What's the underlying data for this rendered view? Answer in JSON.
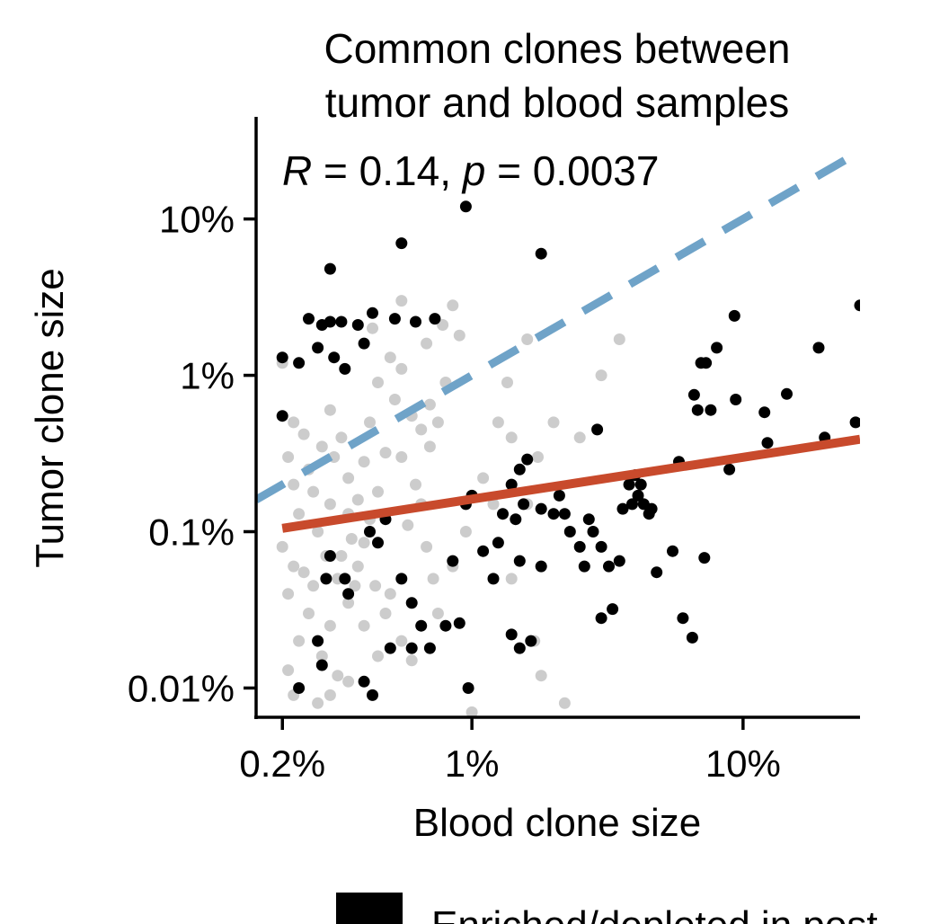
{
  "chart_data": {
    "type": "scatter",
    "title_lines": [
      "Common clones between",
      "tumor and blood samples"
    ],
    "xlabel": "Blood clone size",
    "ylabel": "Tumor clone size",
    "x_scale": "log10",
    "y_scale": "log10",
    "xlim": [
      0.16,
      27
    ],
    "ylim": [
      0.0065,
      45
    ],
    "x_ticks": [
      0.2,
      1,
      10
    ],
    "x_tick_labels": [
      "0.2%",
      "1%",
      "10%"
    ],
    "y_ticks": [
      0.01,
      0.1,
      1,
      10
    ],
    "y_tick_labels": [
      "0.01%",
      "0.1%",
      "1%",
      "10%"
    ],
    "annotation": {
      "r_symbol": "R",
      "r_text": " = 0.14, ",
      "p_symbol": "p",
      "p_text": " = 0.0037"
    },
    "colors": {
      "enriched": "#000000",
      "other": "#cccccc",
      "fit": "#c84a2c",
      "identity": "#6fa3c8",
      "axis": "#000000"
    },
    "lines": [
      {
        "name": "identity",
        "style": "dashed",
        "x": [
          0.16,
          25
        ],
        "y": [
          0.16,
          25
        ]
      },
      {
        "name": "fit",
        "style": "solid",
        "x": [
          0.2,
          27
        ],
        "y": [
          0.105,
          0.39
        ]
      }
    ],
    "legend": {
      "label": "Enriched/depleted in post"
    },
    "series": [
      {
        "name": "other",
        "points": [
          [
            0.2,
            1.2
          ],
          [
            0.22,
            0.5
          ],
          [
            0.21,
            0.3
          ],
          [
            0.24,
            0.42
          ],
          [
            0.26,
            0.18
          ],
          [
            0.23,
            0.13
          ],
          [
            0.2,
            0.08
          ],
          [
            0.22,
            0.06
          ],
          [
            0.21,
            0.04
          ],
          [
            0.25,
            0.03
          ],
          [
            0.23,
            0.02
          ],
          [
            0.21,
            0.013
          ],
          [
            0.22,
            0.009
          ],
          [
            0.27,
            0.008
          ],
          [
            0.25,
            0.25
          ],
          [
            0.28,
            0.35
          ],
          [
            0.3,
            0.6
          ],
          [
            0.33,
            0.4
          ],
          [
            0.35,
            0.22
          ],
          [
            0.3,
            0.15
          ],
          [
            0.27,
            0.1
          ],
          [
            0.29,
            0.07
          ],
          [
            0.32,
            0.05
          ],
          [
            0.35,
            0.035
          ],
          [
            0.3,
            0.025
          ],
          [
            0.28,
            0.016
          ],
          [
            0.32,
            0.012
          ],
          [
            0.38,
            0.16
          ],
          [
            0.4,
            0.28
          ],
          [
            0.42,
            0.5
          ],
          [
            0.45,
            0.9
          ],
          [
            0.5,
            1.3
          ],
          [
            0.43,
            2.0
          ],
          [
            0.55,
            3.0
          ],
          [
            0.52,
            0.7
          ],
          [
            0.48,
            0.32
          ],
          [
            0.45,
            0.18
          ],
          [
            0.42,
            0.12
          ],
          [
            0.4,
            0.085
          ],
          [
            0.38,
            0.06
          ],
          [
            0.44,
            0.045
          ],
          [
            0.5,
            0.04
          ],
          [
            0.48,
            0.03
          ],
          [
            0.55,
            0.02
          ],
          [
            0.6,
            0.015
          ],
          [
            0.58,
            0.11
          ],
          [
            0.62,
            0.2
          ],
          [
            0.55,
            0.3
          ],
          [
            0.65,
            0.45
          ],
          [
            0.7,
            0.65
          ],
          [
            0.68,
            1.6
          ],
          [
            0.78,
            2.1
          ],
          [
            0.8,
            0.9
          ],
          [
            0.75,
            0.5
          ],
          [
            0.7,
            0.35
          ],
          [
            0.65,
            0.15
          ],
          [
            0.68,
            0.08
          ],
          [
            0.72,
            0.05
          ],
          [
            0.85,
            2.8
          ],
          [
            0.9,
            1.8
          ],
          [
            0.55,
            1.1
          ],
          [
            0.6,
            0.55
          ],
          [
            0.35,
            0.13
          ],
          [
            0.36,
            0.09
          ],
          [
            0.33,
            0.07
          ],
          [
            0.26,
            0.045
          ],
          [
            0.24,
            0.055
          ],
          [
            0.37,
            0.045
          ],
          [
            0.31,
            0.3
          ],
          [
            0.22,
            0.2
          ],
          [
            1.0,
            0.007
          ],
          [
            1.2,
            0.15
          ],
          [
            1.4,
            0.4
          ],
          [
            1.35,
            0.9
          ],
          [
            1.6,
            1.7
          ],
          [
            2.0,
            0.5
          ],
          [
            1.75,
            0.3
          ],
          [
            1.8,
            0.012
          ],
          [
            2.2,
            0.008
          ],
          [
            3.0,
            1.0
          ],
          [
            3.5,
            1.7
          ],
          [
            2.5,
            0.4
          ],
          [
            1.6,
            0.15
          ],
          [
            1.4,
            0.05
          ],
          [
            1.7,
            0.02
          ],
          [
            1.25,
            0.5
          ],
          [
            1.1,
            0.22
          ],
          [
            0.95,
            0.1
          ],
          [
            0.85,
            0.06
          ],
          [
            0.75,
            0.03
          ],
          [
            0.4,
            0.025
          ],
          [
            0.45,
            0.016
          ],
          [
            0.35,
            0.011
          ],
          [
            0.3,
            0.009
          ]
        ]
      },
      {
        "name": "enriched",
        "points": [
          [
            0.2,
            1.3
          ],
          [
            0.2,
            0.55
          ],
          [
            0.23,
            1.2
          ],
          [
            0.25,
            2.3
          ],
          [
            0.28,
            2.1
          ],
          [
            0.3,
            2.2
          ],
          [
            0.27,
            1.5
          ],
          [
            0.31,
            1.3
          ],
          [
            0.34,
            1.1
          ],
          [
            0.3,
            4.8
          ],
          [
            0.33,
            2.2
          ],
          [
            0.38,
            2.1
          ],
          [
            0.4,
            1.6
          ],
          [
            0.43,
            2.5
          ],
          [
            0.52,
            2.3
          ],
          [
            0.55,
            7.0
          ],
          [
            0.62,
            2.2
          ],
          [
            0.73,
            2.3
          ],
          [
            0.95,
            12.0
          ],
          [
            1.8,
            6.0
          ],
          [
            0.3,
            0.07
          ],
          [
            0.29,
            0.05
          ],
          [
            0.27,
            0.02
          ],
          [
            0.28,
            0.014
          ],
          [
            0.34,
            0.05
          ],
          [
            0.42,
            0.1
          ],
          [
            0.45,
            0.085
          ],
          [
            0.4,
            0.011
          ],
          [
            0.43,
            0.009
          ],
          [
            0.5,
            0.018
          ],
          [
            0.55,
            0.05
          ],
          [
            0.6,
            0.035
          ],
          [
            0.65,
            0.025
          ],
          [
            0.7,
            0.018
          ],
          [
            0.8,
            0.025
          ],
          [
            0.9,
            0.026
          ],
          [
            0.85,
            0.065
          ],
          [
            0.95,
            0.15
          ],
          [
            1.0,
            0.17
          ],
          [
            1.1,
            0.075
          ],
          [
            1.2,
            0.05
          ],
          [
            1.25,
            0.085
          ],
          [
            1.3,
            0.13
          ],
          [
            1.4,
            0.2
          ],
          [
            1.5,
            0.25
          ],
          [
            1.6,
            0.29
          ],
          [
            1.55,
            0.15
          ],
          [
            1.45,
            0.12
          ],
          [
            1.5,
            0.065
          ],
          [
            1.4,
            0.022
          ],
          [
            1.5,
            0.018
          ],
          [
            1.65,
            0.02
          ],
          [
            1.8,
            0.14
          ],
          [
            2.0,
            0.13
          ],
          [
            2.2,
            0.13
          ],
          [
            2.3,
            0.1
          ],
          [
            2.5,
            0.08
          ],
          [
            2.6,
            0.06
          ],
          [
            2.7,
            0.12
          ],
          [
            2.8,
            0.1
          ],
          [
            2.9,
            0.45
          ],
          [
            3.0,
            0.08
          ],
          [
            3.2,
            0.06
          ],
          [
            3.5,
            0.065
          ],
          [
            3.3,
            0.032
          ],
          [
            3.0,
            0.028
          ],
          [
            3.9,
            0.15
          ],
          [
            4.1,
            0.17
          ],
          [
            4.3,
            0.15
          ],
          [
            4.5,
            0.13
          ],
          [
            4.0,
            0.23
          ],
          [
            4.2,
            0.2
          ],
          [
            4.8,
            0.055
          ],
          [
            5.5,
            0.075
          ],
          [
            5.8,
            0.28
          ],
          [
            6.0,
            0.028
          ],
          [
            6.5,
            0.021
          ],
          [
            6.6,
            0.75
          ],
          [
            6.8,
            0.6
          ],
          [
            7.2,
            0.068
          ],
          [
            7.0,
            1.2
          ],
          [
            7.3,
            1.2
          ],
          [
            7.6,
            0.6
          ],
          [
            8.0,
            1.5
          ],
          [
            8.9,
            0.25
          ],
          [
            9.4,
            0.7
          ],
          [
            9.3,
            2.4
          ],
          [
            12.0,
            0.58
          ],
          [
            12.3,
            0.37
          ],
          [
            14.5,
            0.76
          ],
          [
            19.0,
            1.5
          ],
          [
            20.0,
            0.4
          ],
          [
            26.0,
            0.5
          ],
          [
            27.0,
            2.8
          ],
          [
            1.05,
            0.0058
          ],
          [
            0.97,
            0.01
          ],
          [
            0.6,
            0.018
          ],
          [
            0.48,
            0.12
          ],
          [
            0.35,
            0.04
          ],
          [
            1.8,
            0.06
          ],
          [
            2.1,
            0.17
          ],
          [
            3.6,
            0.14
          ],
          [
            3.8,
            0.2
          ],
          [
            4.6,
            0.14
          ],
          [
            0.23,
            0.01
          ]
        ]
      }
    ]
  }
}
